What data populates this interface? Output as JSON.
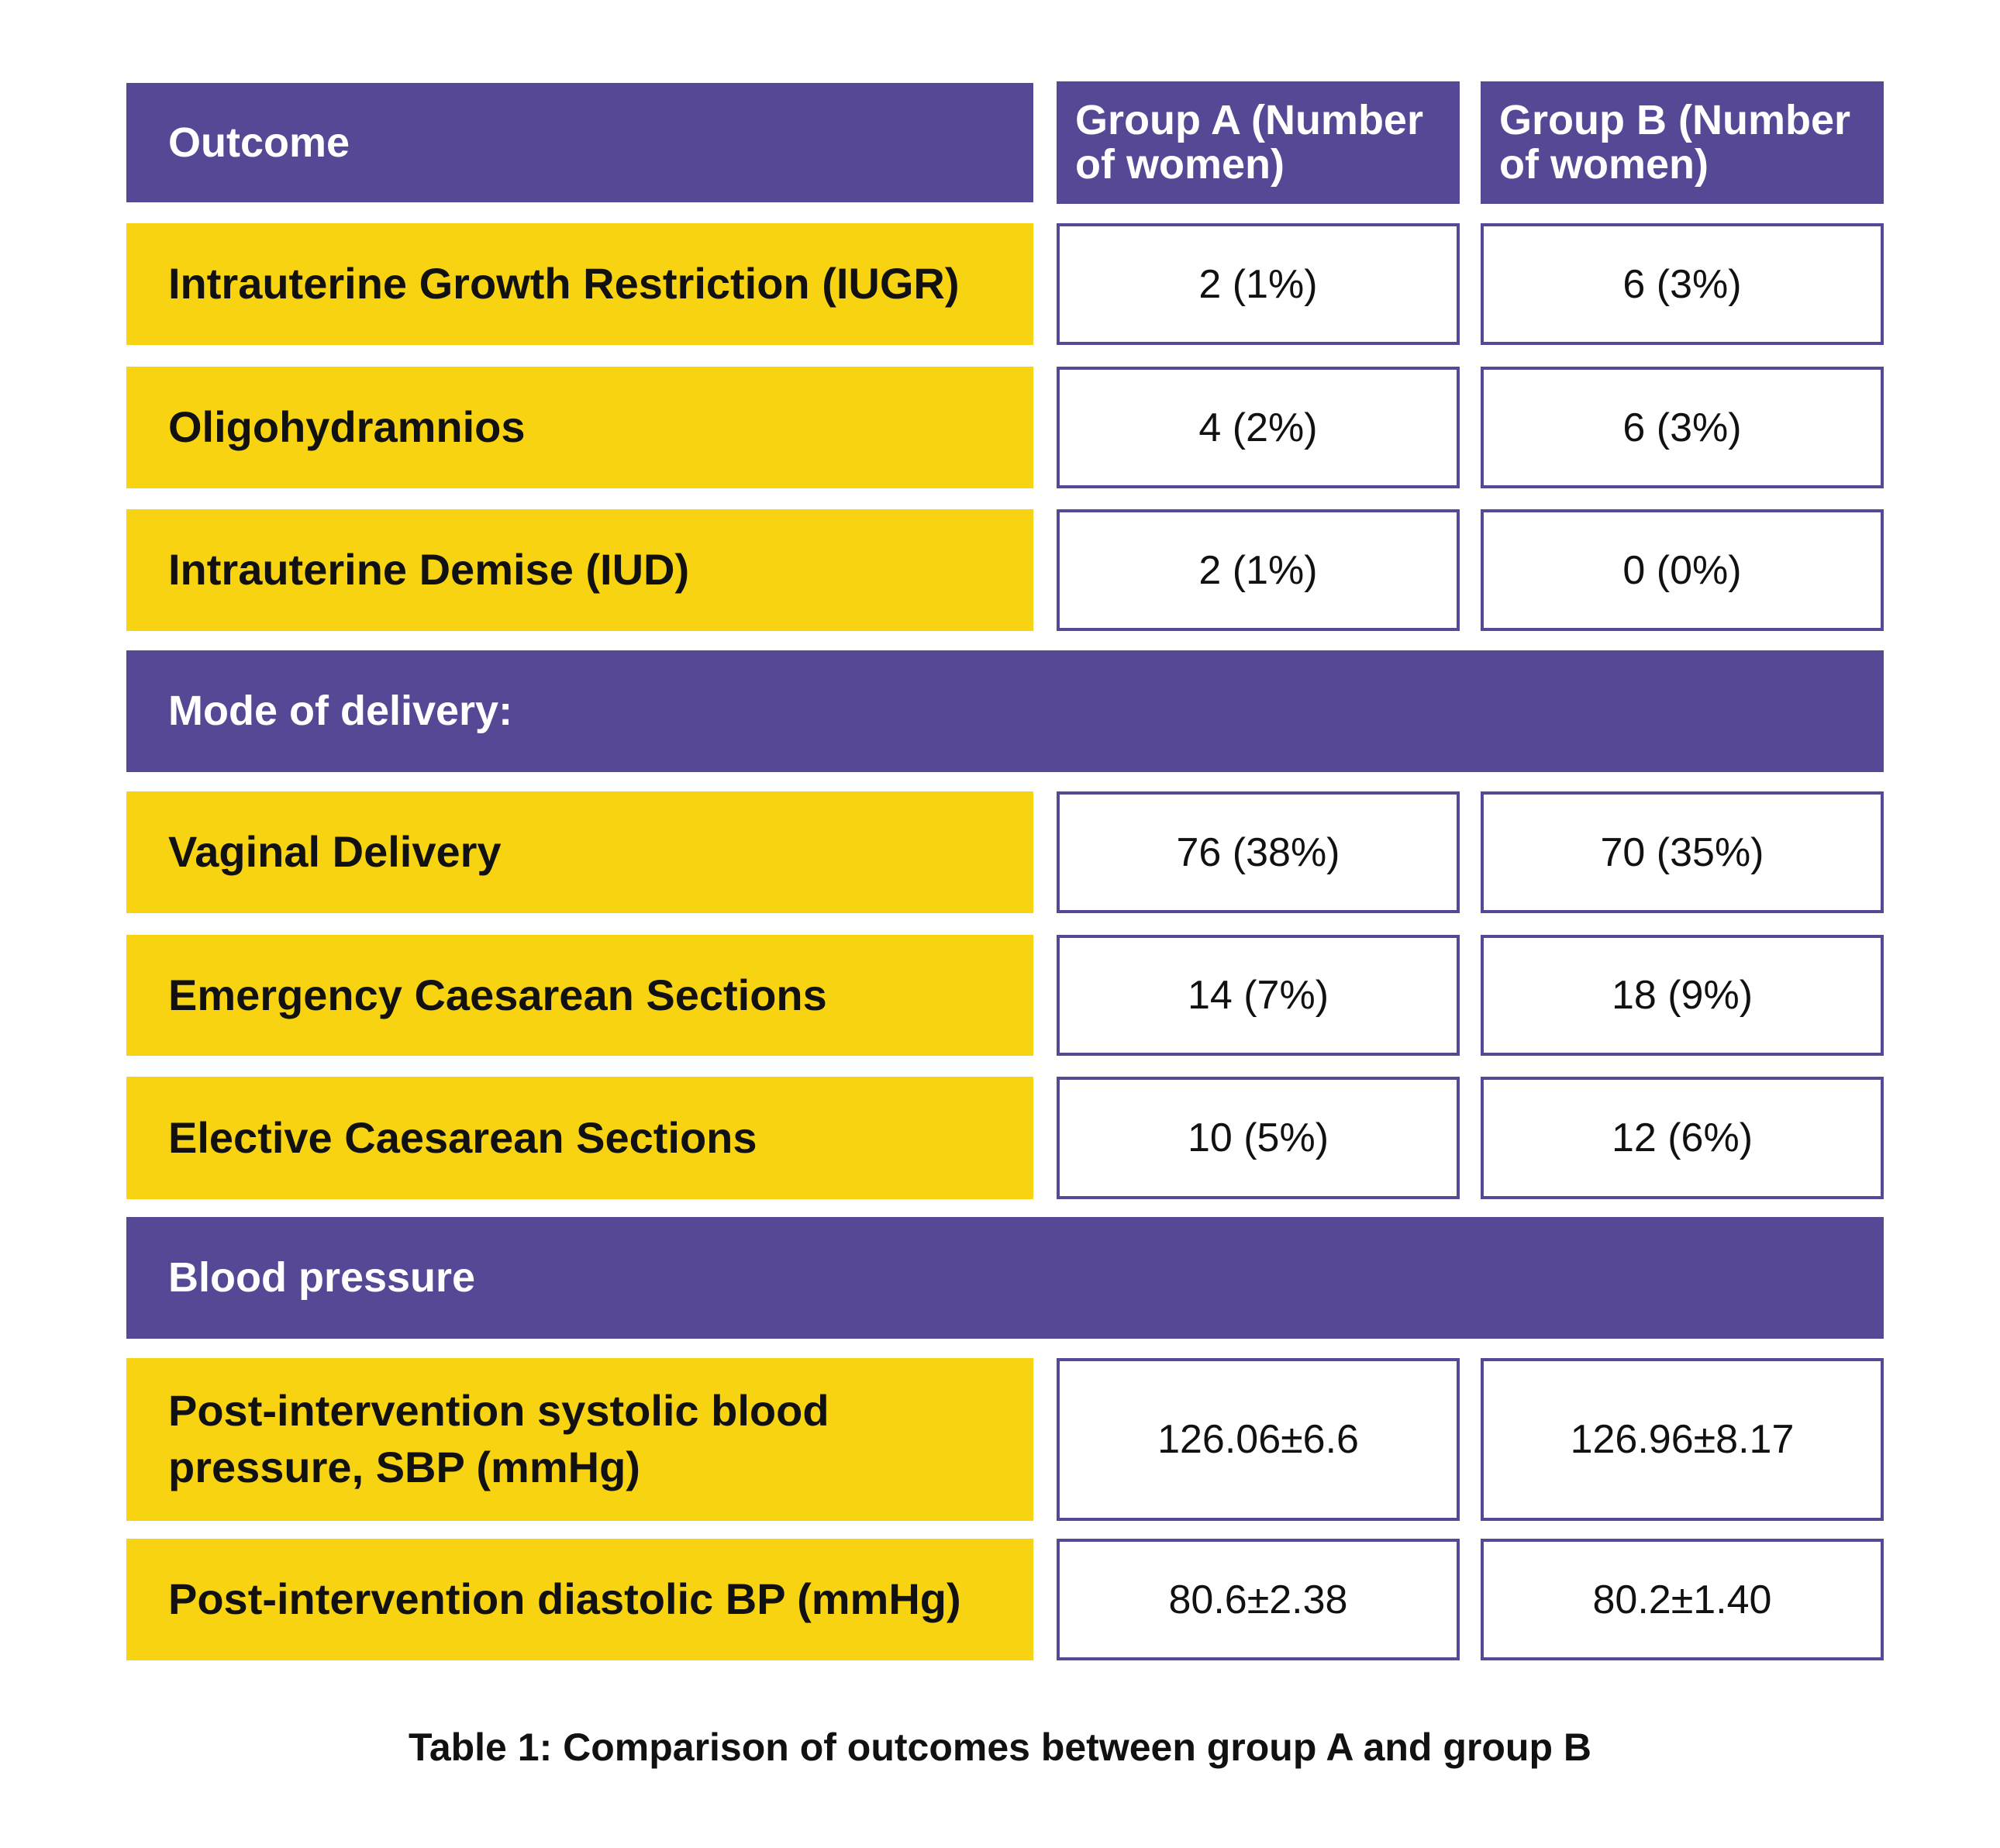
{
  "header": {
    "outcome": "Outcome",
    "group_a": "Group A (Number of women)",
    "group_b": "Group B (Number of women)"
  },
  "rows": [
    {
      "label": "Intrauterine Growth Restriction (IUGR)",
      "a": "2 (1%)",
      "b": "6 (3%)"
    },
    {
      "label": "Oligohydramnios",
      "a": "4 (2%)",
      "b": "6 (3%)"
    },
    {
      "label": "Intrauterine Demise (IUD)",
      "a": "2 (1%)",
      "b": "0 (0%)"
    },
    {
      "label": "Vaginal Delivery",
      "a": "76 (38%)",
      "b": "70 (35%)"
    },
    {
      "label": "Emergency Caesarean Sections",
      "a": "14 (7%)",
      "b": "18 (9%)"
    },
    {
      "label": "Elective Caesarean Sections",
      "a": "10 (5%)",
      "b": "12 (6%)"
    },
    {
      "label": "Post-intervention systolic blood pressure, SBP (mmHg)",
      "a": "126.06±6.6",
      "b": "126.96±8.17"
    },
    {
      "label": "Post-intervention diastolic BP (mmHg)",
      "a": "80.6±2.38",
      "b": "80.2±1.40"
    }
  ],
  "sections": {
    "mode_of_delivery": "Mode of delivery:",
    "blood_pressure": "Blood pressure"
  },
  "caption": "Table 1: Comparison of outcomes between group A and group B",
  "colors": {
    "header": "#574896",
    "label": "#F7D312",
    "value_border": "#574896"
  }
}
